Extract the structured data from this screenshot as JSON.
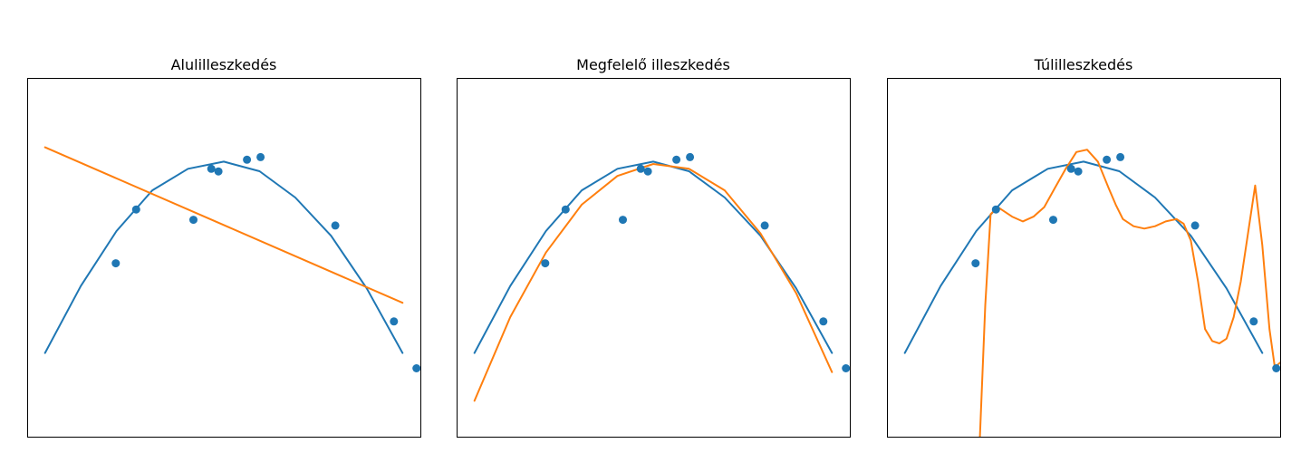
{
  "chart_data": [
    {
      "type": "scatter",
      "title": "Alulilleszkedés",
      "xlim": [
        -0.05,
        1.05
      ],
      "ylim": [
        -0.25,
        1.25
      ],
      "grid": false,
      "axes_ticks_visible": false,
      "colors": {
        "points": "#1f77b4",
        "true_function": "#1f77b4",
        "fit": "#ff7f0e"
      },
      "points": {
        "x": [
          0.198,
          0.255,
          0.415,
          0.465,
          0.485,
          0.565,
          0.603,
          0.812,
          0.976,
          1.039
        ],
        "y": [
          0.475,
          0.7,
          0.657,
          0.87,
          0.859,
          0.908,
          0.919,
          0.633,
          0.232,
          0.036
        ]
      },
      "series": [
        {
          "role": "true_function",
          "x": [
            0.0,
            0.1,
            0.2,
            0.3,
            0.4,
            0.5,
            0.6,
            0.7,
            0.8,
            0.9,
            1.0
          ],
          "y": [
            0.1,
            0.38,
            0.61,
            0.78,
            0.87,
            0.9,
            0.86,
            0.75,
            0.59,
            0.37,
            0.1
          ]
        },
        {
          "role": "fit",
          "x": [
            0.0,
            1.0
          ],
          "y": [
            0.96,
            0.31
          ]
        }
      ]
    },
    {
      "type": "scatter",
      "title": "Megfelelő illeszkedés",
      "xlim": [
        -0.05,
        1.05
      ],
      "ylim": [
        -0.25,
        1.25
      ],
      "grid": false,
      "axes_ticks_visible": false,
      "colors": {
        "points": "#1f77b4",
        "true_function": "#1f77b4",
        "fit": "#ff7f0e"
      },
      "points": {
        "x": [
          0.198,
          0.255,
          0.415,
          0.465,
          0.485,
          0.565,
          0.603,
          0.812,
          0.976,
          1.039
        ],
        "y": [
          0.475,
          0.7,
          0.657,
          0.87,
          0.859,
          0.908,
          0.919,
          0.633,
          0.232,
          0.036
        ]
      },
      "series": [
        {
          "role": "true_function",
          "x": [
            0.0,
            0.1,
            0.2,
            0.3,
            0.4,
            0.5,
            0.6,
            0.7,
            0.8,
            0.9,
            1.0
          ],
          "y": [
            0.1,
            0.38,
            0.61,
            0.78,
            0.87,
            0.9,
            0.86,
            0.75,
            0.59,
            0.37,
            0.1
          ]
        },
        {
          "role": "fit",
          "x": [
            0.0,
            0.1,
            0.2,
            0.3,
            0.4,
            0.5,
            0.6,
            0.7,
            0.8,
            0.9,
            1.0
          ],
          "y": [
            -0.1,
            0.25,
            0.52,
            0.72,
            0.84,
            0.89,
            0.87,
            0.78,
            0.6,
            0.35,
            0.02
          ]
        }
      ]
    },
    {
      "type": "scatter",
      "title": "Túlilleszkedés",
      "xlim": [
        -0.05,
        1.05
      ],
      "ylim": [
        -0.25,
        1.25
      ],
      "grid": false,
      "axes_ticks_visible": false,
      "colors": {
        "points": "#1f77b4",
        "true_function": "#1f77b4",
        "fit": "#ff7f0e"
      },
      "points": {
        "x": [
          0.198,
          0.255,
          0.415,
          0.465,
          0.485,
          0.565,
          0.603,
          0.812,
          0.976,
          1.039
        ],
        "y": [
          0.475,
          0.7,
          0.657,
          0.87,
          0.859,
          0.908,
          0.919,
          0.633,
          0.232,
          0.036
        ]
      },
      "series": [
        {
          "role": "true_function",
          "x": [
            0.0,
            0.1,
            0.2,
            0.3,
            0.4,
            0.5,
            0.6,
            0.7,
            0.8,
            0.9,
            1.0
          ],
          "y": [
            0.1,
            0.38,
            0.61,
            0.78,
            0.87,
            0.9,
            0.86,
            0.75,
            0.59,
            0.37,
            0.1
          ]
        },
        {
          "role": "fit",
          "x": [
            0.21,
            0.225,
            0.24,
            0.26,
            0.28,
            0.3,
            0.33,
            0.36,
            0.39,
            0.42,
            0.45,
            0.48,
            0.51,
            0.54,
            0.57,
            0.59,
            0.61,
            0.64,
            0.67,
            0.7,
            0.73,
            0.76,
            0.78,
            0.8,
            0.82,
            0.84,
            0.86,
            0.88,
            0.9,
            0.92,
            0.94,
            0.96,
            0.98,
            1.0,
            1.02,
            1.035,
            1.05
          ],
          "y": [
            -0.25,
            0.3,
            0.68,
            0.71,
            0.69,
            0.67,
            0.65,
            0.67,
            0.71,
            0.79,
            0.87,
            0.94,
            0.95,
            0.9,
            0.79,
            0.72,
            0.66,
            0.63,
            0.62,
            0.63,
            0.65,
            0.66,
            0.64,
            0.57,
            0.4,
            0.2,
            0.15,
            0.14,
            0.16,
            0.25,
            0.4,
            0.6,
            0.8,
            0.55,
            0.2,
            0.04,
            0.06
          ]
        }
      ]
    }
  ]
}
